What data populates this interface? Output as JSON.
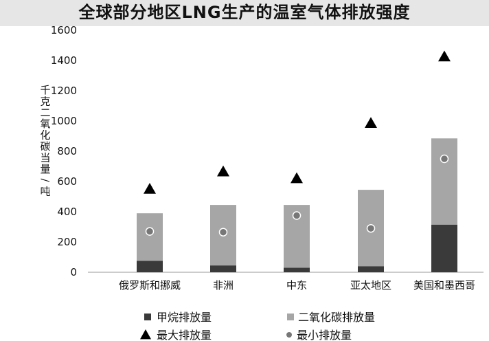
{
  "title": "全球部分地区LNG生产的温室气体排放强度",
  "chart_data": {
    "type": "bar",
    "title": "全球部分地区LNG生产的温室气体排放强度",
    "ylabel": "千克二氧化碳当量/吨",
    "xlabel": "",
    "ylim": [
      0,
      1600
    ],
    "yticks": [
      0,
      200,
      400,
      600,
      800,
      1000,
      1200,
      1400,
      1600
    ],
    "grid": false,
    "legend_position": "bottom",
    "categories": [
      "俄罗斯和挪威",
      "非洲",
      "中东",
      "亚太地区",
      "美国和墨西哥"
    ],
    "series": [
      {
        "name": "甲烷排放量",
        "kind": "stacked-bar",
        "color": "#3a3a3a",
        "values": [
          75,
          45,
          30,
          40,
          315
        ]
      },
      {
        "name": "二氧化碳排放量",
        "kind": "stacked-bar",
        "color": "#a6a6a6",
        "values": [
          315,
          400,
          415,
          505,
          570
        ]
      },
      {
        "name": "最大排放量",
        "kind": "marker-triangle",
        "color": "#000000",
        "values": [
          550,
          665,
          620,
          985,
          1425
        ]
      },
      {
        "name": "最小排放量",
        "kind": "marker-circle",
        "color": "#777777",
        "values": [
          270,
          265,
          375,
          290,
          750
        ]
      }
    ]
  }
}
